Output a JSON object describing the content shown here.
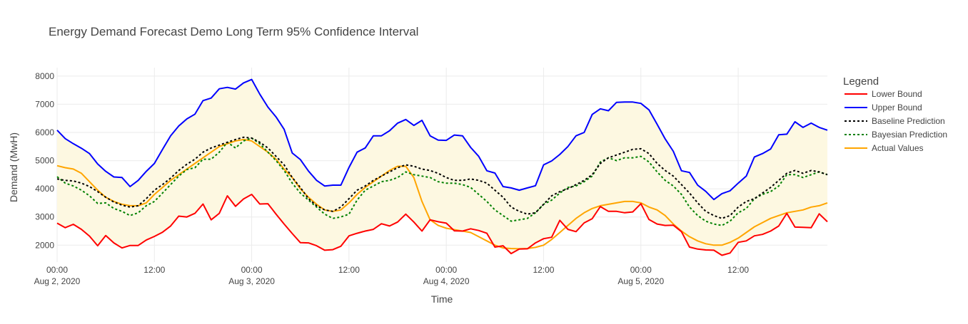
{
  "chart_data": {
    "type": "line",
    "title": "Energy Demand Forecast Demo Long Term 95% Confidence Interval",
    "xlabel": "Time",
    "ylabel": "Demand (MwH)",
    "x_start": "2020-08-02 00:00",
    "x_end": "2020-08-05 23:00",
    "x_step_hours": 1,
    "ylim": [
      1400,
      8300
    ],
    "y_ticks": [
      2000,
      3000,
      4000,
      5000,
      6000,
      7000,
      8000
    ],
    "y_tick_labels": [
      "2000",
      "3000",
      "4000",
      "5000",
      "6000",
      "7000",
      "8000"
    ],
    "x_ticks": [
      {
        "hour": 0,
        "time": "00:00",
        "date": "Aug 2, 2020"
      },
      {
        "hour": 12,
        "time": "12:00",
        "date": ""
      },
      {
        "hour": 24,
        "time": "00:00",
        "date": "Aug 3, 2020"
      },
      {
        "hour": 36,
        "time": "12:00",
        "date": ""
      },
      {
        "hour": 48,
        "time": "00:00",
        "date": "Aug 4, 2020"
      },
      {
        "hour": 60,
        "time": "12:00",
        "date": ""
      },
      {
        "hour": 72,
        "time": "00:00",
        "date": "Aug 5, 2020"
      },
      {
        "hour": 84,
        "time": "12:00",
        "date": ""
      }
    ],
    "grid": true,
    "band": {
      "between": [
        "Lower Bound",
        "Upper Bound"
      ],
      "color": "#fdf8e1"
    },
    "legend": {
      "title": "Legend",
      "position": "right"
    },
    "series": [
      {
        "name": "Lower Bound",
        "color": "#ff0000",
        "dash": "solid",
        "values": [
          2780,
          2620,
          2740,
          2560,
          2320,
          1980,
          2340,
          2080,
          1900,
          1990,
          1990,
          2180,
          2310,
          2460,
          2680,
          3030,
          3000,
          3130,
          3460,
          2900,
          3130,
          3750,
          3380,
          3640,
          3800,
          3460,
          3470,
          3100,
          2750,
          2410,
          2090,
          2080,
          1980,
          1820,
          1840,
          1960,
          2330,
          2420,
          2500,
          2560,
          2760,
          2680,
          2820,
          3100,
          2820,
          2500,
          2900,
          2830,
          2780,
          2510,
          2500,
          2580,
          2520,
          2420,
          1930,
          1980,
          1700,
          1860,
          1870,
          2080,
          2230,
          2280,
          2880,
          2560,
          2480,
          2790,
          2940,
          3370,
          3200,
          3200,
          3150,
          3180,
          3470,
          2910,
          2750,
          2700,
          2710,
          2480,
          1930,
          1860,
          1830,
          1820,
          1640,
          1720,
          2100,
          2150,
          2330,
          2380,
          2500,
          2680,
          3130,
          2640,
          2630,
          2620,
          3110,
          2830
        ]
      },
      {
        "name": "Upper Bound",
        "color": "#0000ff",
        "dash": "solid",
        "values": [
          6080,
          5780,
          5600,
          5440,
          5250,
          4880,
          4620,
          4420,
          4400,
          4080,
          4300,
          4620,
          4900,
          5400,
          5880,
          6230,
          6480,
          6650,
          7130,
          7220,
          7550,
          7600,
          7540,
          7760,
          7880,
          7360,
          6900,
          6550,
          6110,
          5270,
          5040,
          4630,
          4300,
          4100,
          4130,
          4130,
          4760,
          5300,
          5450,
          5880,
          5880,
          6060,
          6330,
          6460,
          6250,
          6430,
          5880,
          5730,
          5720,
          5910,
          5880,
          5470,
          5150,
          4640,
          4560,
          4080,
          4030,
          3950,
          4030,
          4110,
          4850,
          4990,
          5220,
          5500,
          5880,
          6000,
          6640,
          6840,
          6770,
          7070,
          7080,
          7080,
          7030,
          6800,
          6290,
          5770,
          5330,
          4640,
          4580,
          4130,
          3910,
          3620,
          3830,
          3930,
          4200,
          4450,
          5130,
          5250,
          5410,
          5920,
          5940,
          6380,
          6180,
          6330,
          6180,
          6080
        ]
      },
      {
        "name": "Baseline Prediction",
        "color": "#000000",
        "dash": "dot",
        "values": [
          4350,
          4300,
          4280,
          4200,
          4080,
          3900,
          3700,
          3530,
          3420,
          3350,
          3400,
          3650,
          3950,
          4150,
          4380,
          4650,
          4870,
          5050,
          5300,
          5450,
          5550,
          5650,
          5750,
          5830,
          5800,
          5650,
          5450,
          5150,
          4850,
          4400,
          4050,
          3650,
          3400,
          3250,
          3200,
          3350,
          3650,
          3950,
          4100,
          4300,
          4450,
          4600,
          4750,
          4850,
          4800,
          4700,
          4650,
          4550,
          4400,
          4300,
          4300,
          4350,
          4300,
          4200,
          3950,
          3700,
          3350,
          3200,
          3100,
          3150,
          3450,
          3750,
          3900,
          4000,
          4150,
          4300,
          4500,
          4900,
          5100,
          5200,
          5300,
          5400,
          5420,
          5250,
          4900,
          4650,
          4450,
          4150,
          3850,
          3500,
          3200,
          3050,
          2950,
          3050,
          3350,
          3550,
          3650,
          3850,
          4050,
          4300,
          4550,
          4650,
          4550,
          4650,
          4600,
          4500
        ]
      },
      {
        "name": "Bayesian Prediction",
        "color": "#008000",
        "dash": "dot",
        "values": [
          4430,
          4200,
          4100,
          3950,
          3750,
          3480,
          3500,
          3300,
          3200,
          3050,
          3150,
          3400,
          3550,
          3850,
          4150,
          4450,
          4680,
          4750,
          5050,
          5050,
          5300,
          5650,
          5450,
          5700,
          5800,
          5600,
          5300,
          5000,
          4650,
          4200,
          3850,
          3600,
          3350,
          3100,
          2950,
          3000,
          3100,
          3600,
          3950,
          4100,
          4250,
          4300,
          4400,
          4600,
          4500,
          4450,
          4400,
          4250,
          4200,
          4200,
          4150,
          4050,
          3800,
          3550,
          3250,
          3050,
          2850,
          2900,
          2950,
          3150,
          3450,
          3600,
          3850,
          4050,
          4100,
          4250,
          4450,
          4950,
          5100,
          5000,
          5100,
          5100,
          5150,
          4950,
          4600,
          4300,
          4100,
          3800,
          3350,
          3050,
          2850,
          2750,
          2700,
          2850,
          3150,
          3300,
          3650,
          3800,
          3900,
          4100,
          4500,
          4500,
          4400,
          4500,
          4600,
          4500
        ]
      },
      {
        "name": "Actual Values",
        "color": "#ffa500",
        "dash": "solid",
        "values": [
          4820,
          4750,
          4700,
          4550,
          4250,
          3950,
          3700,
          3550,
          3450,
          3400,
          3400,
          3500,
          3800,
          4050,
          4300,
          4500,
          4700,
          4900,
          5100,
          5300,
          5500,
          5600,
          5700,
          5750,
          5700,
          5500,
          5300,
          5050,
          4700,
          4400,
          4000,
          3700,
          3450,
          3250,
          3200,
          3250,
          3500,
          3800,
          4050,
          4250,
          4450,
          4650,
          4800,
          4800,
          4400,
          3550,
          2900,
          2700,
          2600,
          2550,
          2500,
          2450,
          2300,
          2150,
          2000,
          1900,
          1880,
          1870,
          1880,
          1920,
          2000,
          2200,
          2450,
          2700,
          2950,
          3150,
          3300,
          3400,
          3450,
          3500,
          3550,
          3550,
          3500,
          3350,
          3250,
          3050,
          2750,
          2500,
          2300,
          2150,
          2050,
          2000,
          2000,
          2100,
          2250,
          2450,
          2650,
          2800,
          2950,
          3050,
          3150,
          3200,
          3250,
          3350,
          3400,
          3500
        ]
      }
    ]
  }
}
